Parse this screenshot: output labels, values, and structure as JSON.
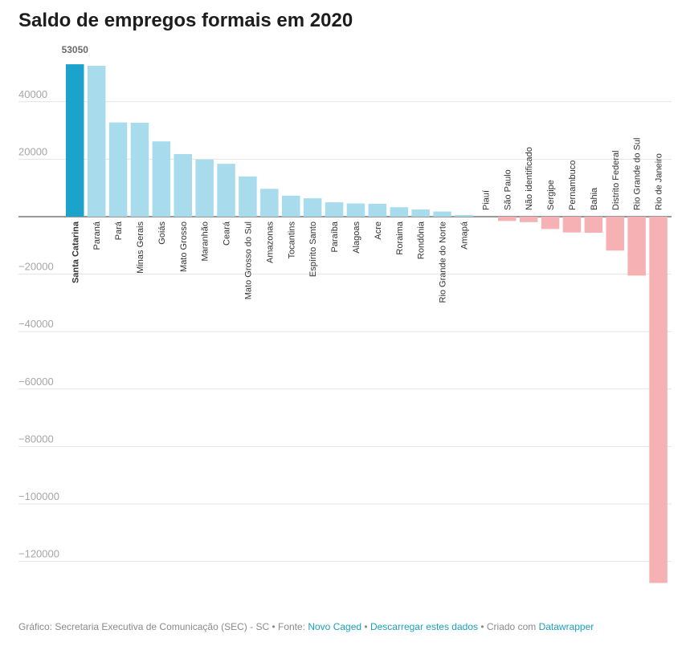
{
  "title": "Saldo de empregos formais em 2020",
  "footer": {
    "source_prefix": "Gráfico: Secretaria Executiva de Comunicação (SEC) - SC • Fonte: ",
    "source_link": "Novo Caged",
    "separator": " • ",
    "download_link": "Descarregar estes dados",
    "created_prefix": " • Criado com ",
    "created_link": "Datawrapper"
  },
  "colors": {
    "highlight": "#1ba3cc",
    "positive": "#a8dcec",
    "negative": "#f5b1b4",
    "grid": "#e3e3e3",
    "tick_text": "#a6a6a6"
  },
  "chart_data": {
    "type": "bar",
    "title": "Saldo de empregos formais em 2020",
    "ylim": [
      -128000,
      53050
    ],
    "yticks": [
      40000,
      20000,
      0,
      -20000,
      -40000,
      -60000,
      -80000,
      -100000,
      -120000
    ],
    "ytick_labels": [
      "40000",
      "20000",
      "",
      "−20000",
      "−40000",
      "−60000",
      "−80000",
      "−100000",
      "−120000"
    ],
    "grid": true,
    "highlight_category": "Santa Catarina",
    "highlight_value_label": "53050",
    "categories": [
      "Santa Catarina",
      "Paraná",
      "Pará",
      "Minas Gerais",
      "Goiás",
      "Mato Grosso",
      "Maranhão",
      "Ceará",
      "Mato Grosso do Sul",
      "Amazonas",
      "Tocantins",
      "Espírito Santo",
      "Paraíba",
      "Alagoas",
      "Acre",
      "Roraima",
      "Rondônia",
      "Rio Grande do Norte",
      "Amapá",
      "Piauí",
      "São Paulo",
      "Não identificado",
      "Sergipe",
      "Pernambuco",
      "Bahia",
      "Distrito Federal",
      "Rio Grande do Sul",
      "Rio de Janeiro"
    ],
    "values": [
      53050,
      52500,
      32800,
      32700,
      26200,
      21800,
      19900,
      18400,
      14000,
      9700,
      7300,
      6400,
      5000,
      4600,
      4500,
      3300,
      2500,
      1800,
      600,
      0,
      -1500,
      -1900,
      -4300,
      -5500,
      -5600,
      -11800,
      -20500,
      -127500
    ]
  }
}
